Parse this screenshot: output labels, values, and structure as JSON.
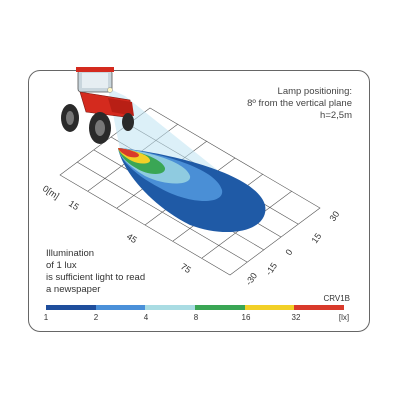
{
  "lamp_note": {
    "line1": "Lamp positioning:",
    "line2": "8º from the vertical plane",
    "line3": "h=2,5m"
  },
  "illumination_note": {
    "line1": "Illumination",
    "line2": "of 1 lux",
    "line3": "is sufficient light to read",
    "line4": "a newspaper"
  },
  "model": "CRV1B",
  "scale": {
    "labels": [
      "1",
      "2",
      "4",
      "8",
      "16",
      "32",
      "[lx]"
    ],
    "colors": [
      "#1f4e9c",
      "#4a90d9",
      "#a9dce3",
      "#3aa655",
      "#f2d027",
      "#d93a2b"
    ]
  },
  "axis_distance": {
    "labels": [
      "0[m]",
      "15",
      "45",
      "75"
    ]
  },
  "axis_lateral": {
    "labels": [
      "30",
      "15",
      "0",
      "-15",
      "-30"
    ]
  },
  "zones": {
    "colors": [
      "#1f5aa6",
      "#4a8fd6",
      "#8fcbe0",
      "#3aa655",
      "#f2d027",
      "#d93a2b"
    ]
  }
}
